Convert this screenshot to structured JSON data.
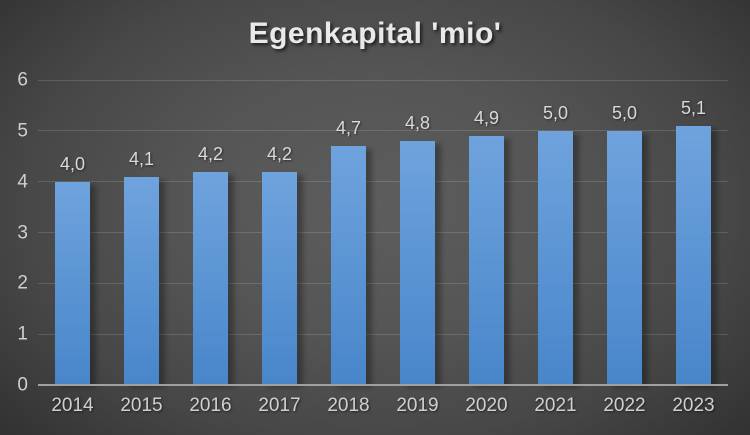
{
  "chart_data": {
    "type": "bar",
    "title": "Egenkapital 'mio'",
    "categories": [
      "2014",
      "2015",
      "2016",
      "2017",
      "2018",
      "2019",
      "2020",
      "2021",
      "2022",
      "2023"
    ],
    "values": [
      4.0,
      4.1,
      4.2,
      4.2,
      4.7,
      4.8,
      4.9,
      5.0,
      5.0,
      5.1
    ],
    "value_labels": [
      "4,0",
      "4,1",
      "4,2",
      "4,2",
      "4,7",
      "4,8",
      "4,9",
      "5,0",
      "5,0",
      "5,1"
    ],
    "xlabel": "",
    "ylabel": "",
    "ylim": [
      0,
      6
    ],
    "yticks": [
      0,
      1,
      2,
      3,
      4,
      5,
      6
    ],
    "grid": true,
    "legend": "none",
    "decimal_separator": ",",
    "colors": {
      "bar_top": "#6fa3dd",
      "bar_bottom": "#4886ca",
      "bar_accent": "#5b9bd5",
      "axis_line": "#a0a0a0",
      "tick_text": "#d0d0d0",
      "title_text": "#e9e9e9",
      "background_center": "#5d5d5d",
      "background_edge": "#252525"
    }
  }
}
